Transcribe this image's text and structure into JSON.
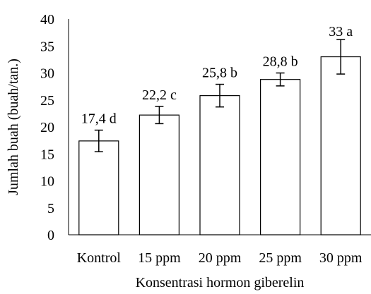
{
  "chart_data": {
    "type": "bar",
    "title": "",
    "xlabel": "Konsentrasi hormon giberelin",
    "ylabel": "Jumlah buah (buah/tan.)",
    "categories": [
      "Kontrol",
      "15 ppm",
      "20 ppm",
      "25 ppm",
      "30 ppm"
    ],
    "values": [
      17.4,
      22.2,
      25.8,
      28.8,
      33
    ],
    "error": [
      2.0,
      1.6,
      2.1,
      1.2,
      3.2
    ],
    "data_labels": [
      "17,4 d",
      "22,2 c",
      "25,8 b",
      "28,8 b",
      "33 a"
    ],
    "ylim": [
      0,
      40
    ],
    "yticks": [
      "0",
      "5",
      "10",
      "15",
      "20",
      "25",
      "30",
      "35",
      "40"
    ],
    "grid": false,
    "legend": "none",
    "bar_fill": "#ffffff",
    "bar_stroke": "#000000"
  }
}
